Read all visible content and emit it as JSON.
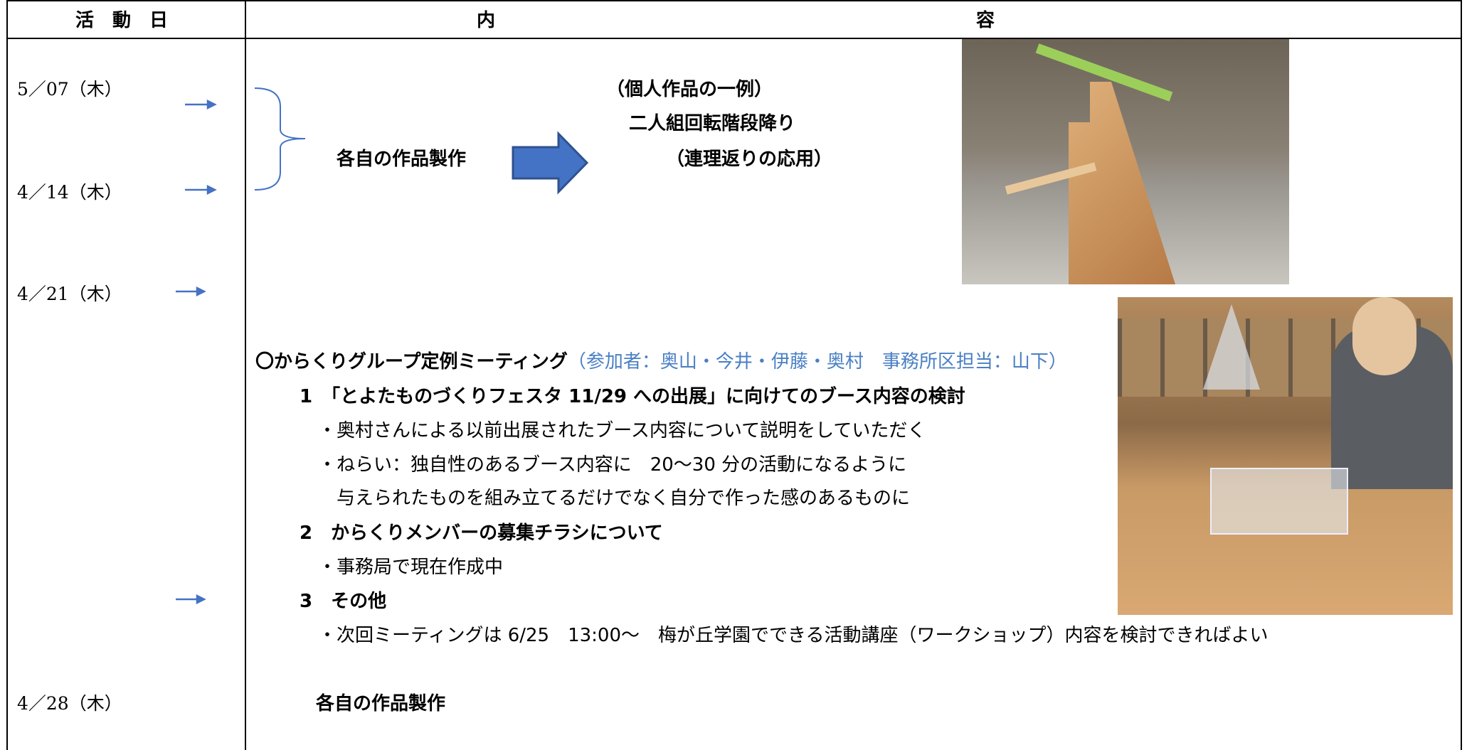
{
  "header": {
    "columns": [
      "活　動　日",
      "内",
      "容"
    ]
  },
  "dates": [
    "5／07（木）",
    "4／14（木）",
    "4／21（木）",
    "4／28（木）"
  ],
  "work": {
    "label": "各自の作品製作",
    "example": "（個人作品の一例）",
    "title": "二人組回転階段降り",
    "note": "（連理返りの応用）"
  },
  "meeting": {
    "title": "〇からくりグループ定例ミーティング",
    "participants": "（参加者：奥山・今井・伊藤・奥村　事務所区担当：山下）",
    "items": [
      {
        "heading": "1　「とよたものづくりフェスタ 11/29 への出展」に向けてのブース内容の検討",
        "lines": [
          "・奥村さんによる以前出展されたブース内容について説明をしていただく",
          "・ねらい：独自性のあるブース内容に　20〜30 分の活動になるように",
          "与えられたものを組み立てるだけでなく自分で作った感のあるものに"
        ]
      },
      {
        "heading": "2　からくりメンバーの募集チラシについて",
        "lines": [
          "・事務局で現在作成中"
        ]
      },
      {
        "heading": "3　その他",
        "lines": [
          "・次回ミーティングは 6/25　13:00〜　梅が丘学園でできる活動講座（ワークショップ）内容を検討できればよい"
        ]
      }
    ]
  },
  "last": {
    "label": "各自の作品製作"
  }
}
